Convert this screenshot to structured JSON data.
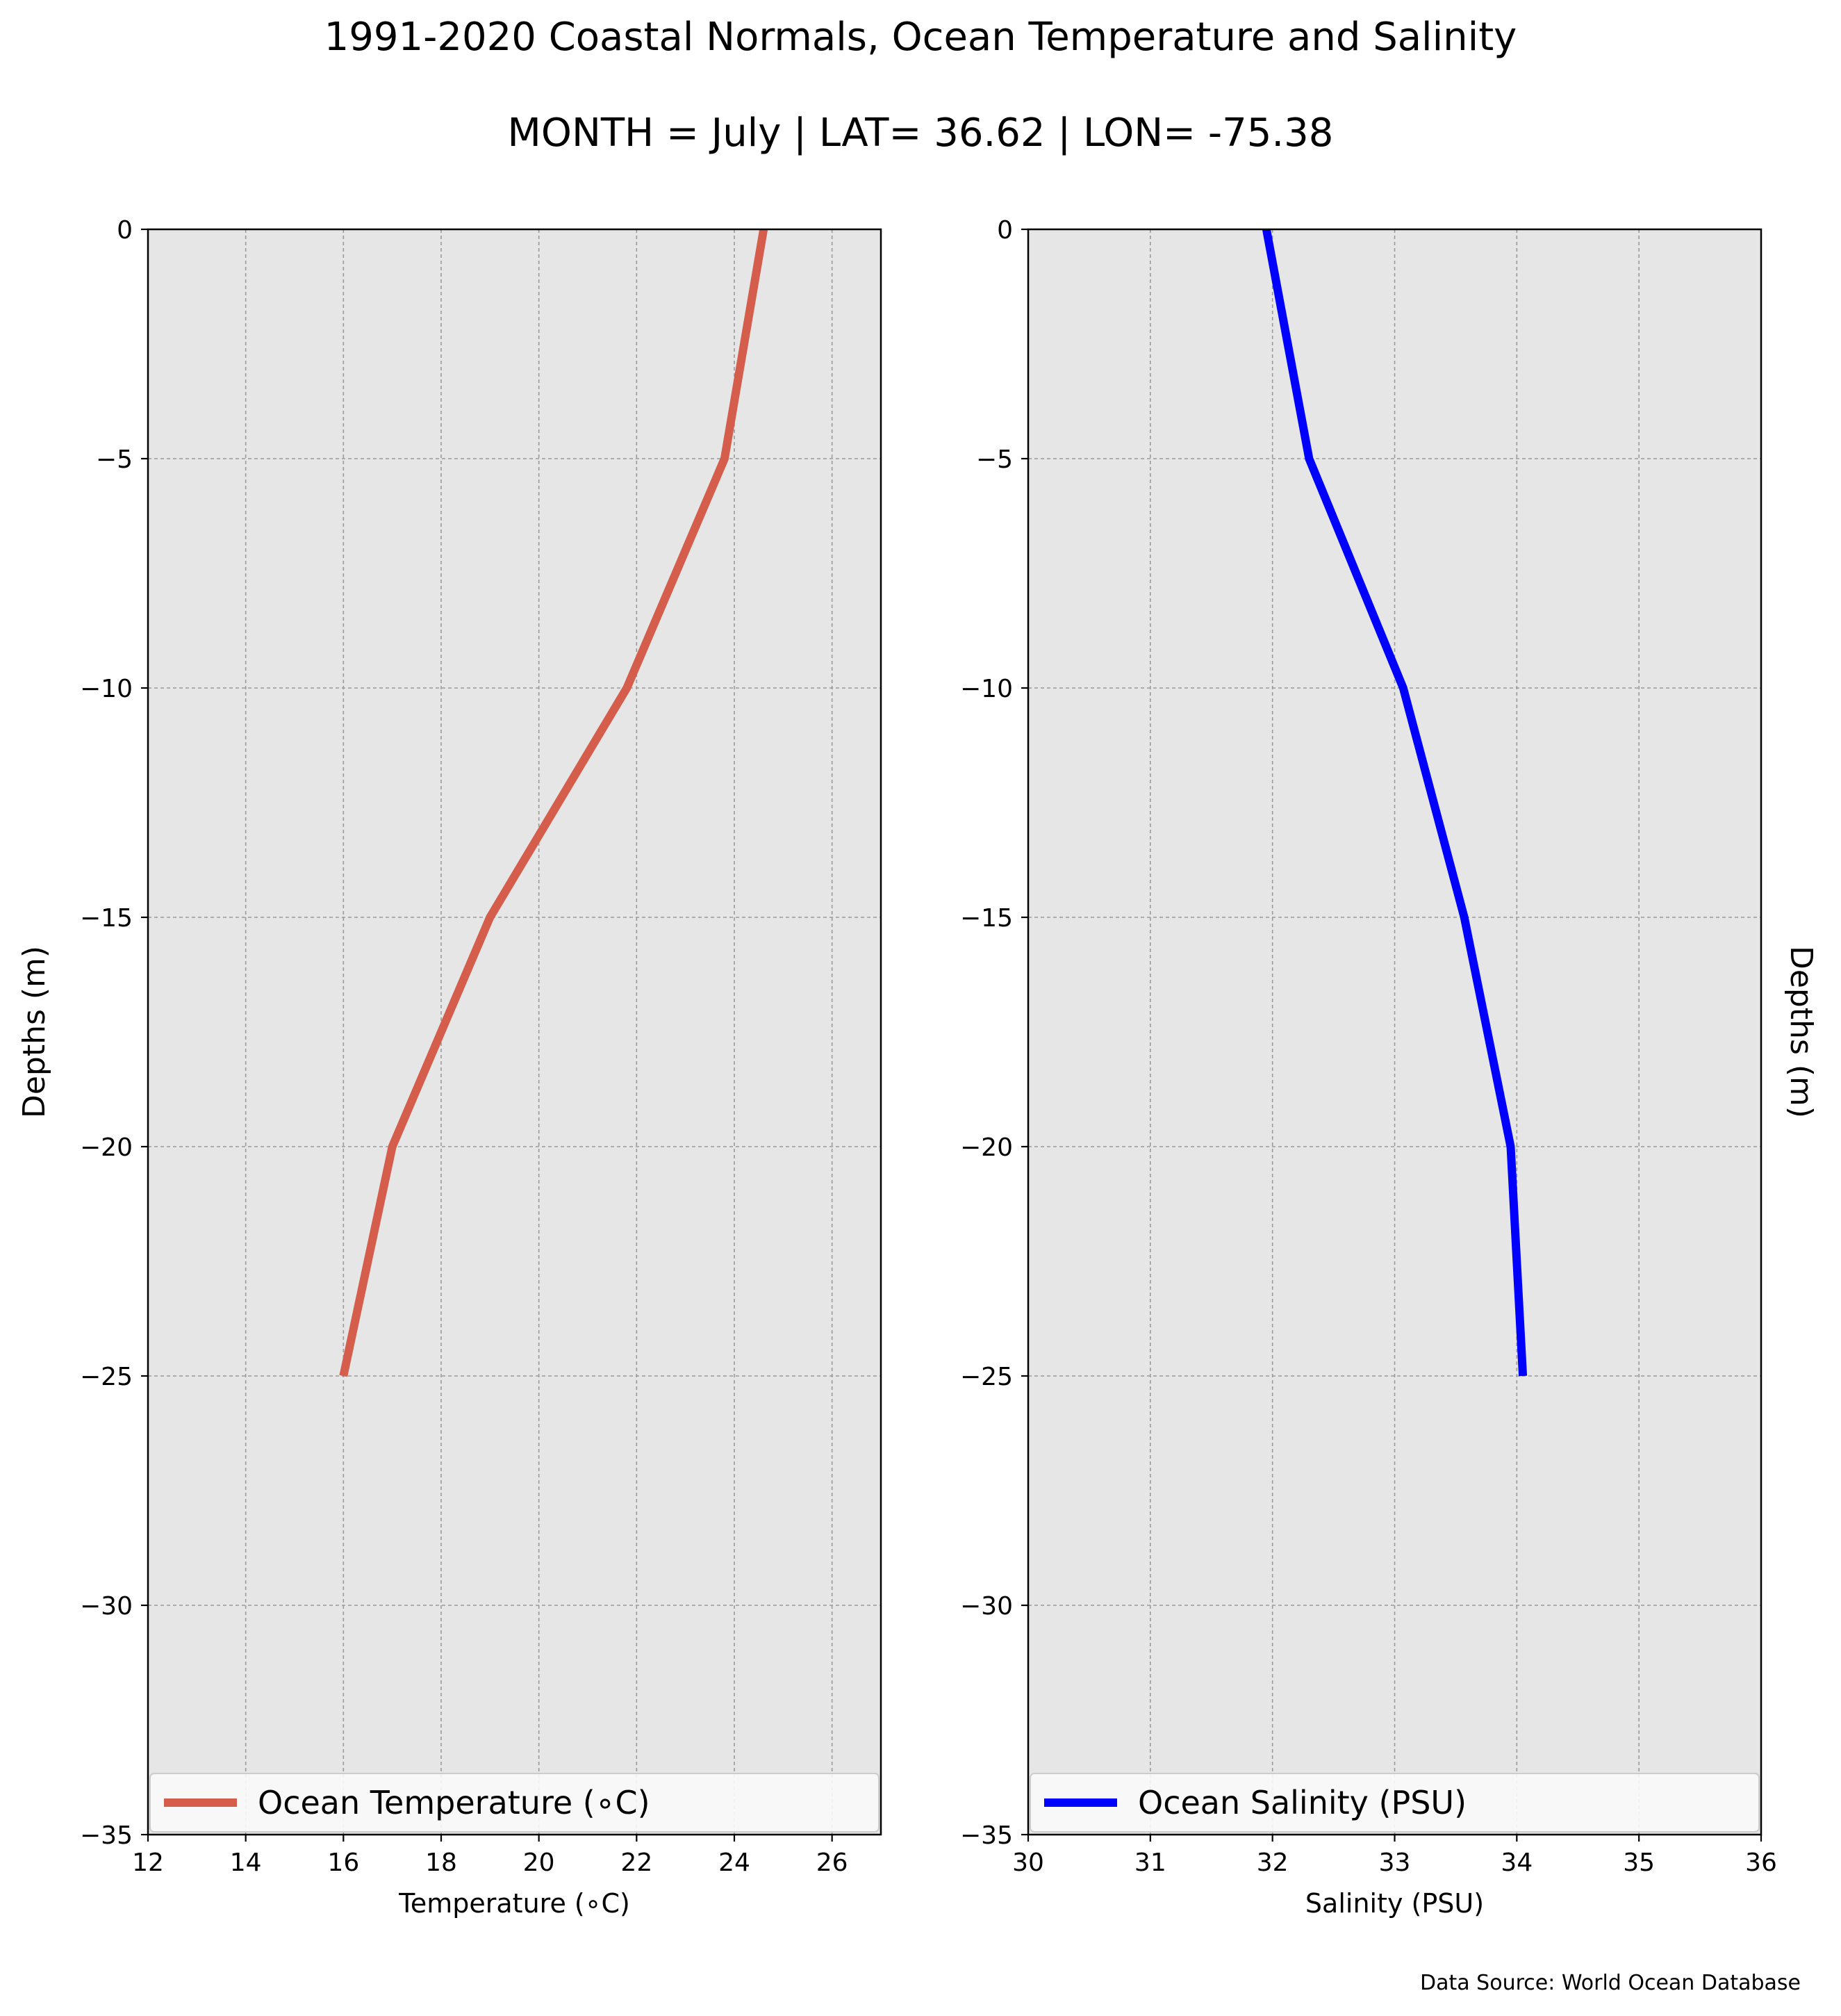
{
  "figure": {
    "title": "1991-2020 Coastal Normals, Ocean Temperature and Salinity",
    "subtitle": "MONTH = July | LAT= 36.62 | LON= -75.38",
    "source": "Data Source: World Ocean Database"
  },
  "chart_data": [
    {
      "type": "line",
      "orientation": "vertical-profile",
      "xlabel": "Temperature (∘C)",
      "ylabel": "Depths (m)",
      "xlim": [
        12,
        27
      ],
      "ylim": [
        -35,
        0
      ],
      "xticks": [
        12,
        14,
        16,
        18,
        20,
        22,
        24,
        26
      ],
      "yticks": [
        0,
        -5,
        -10,
        -15,
        -20,
        -25,
        -30,
        -35
      ],
      "ytick_labels": [
        "0",
        "−5",
        "−10",
        "−15",
        "−20",
        "−25",
        "−30",
        "−35"
      ],
      "grid": true,
      "background": "#e6e6e6",
      "legend_position": "bottom",
      "series": [
        {
          "name": "Ocean Temperature (∘C)",
          "color": "#d45d4c",
          "points": [
            {
              "x": 24.6,
              "y": 0
            },
            {
              "x": 23.8,
              "y": -5
            },
            {
              "x": 21.8,
              "y": -10
            },
            {
              "x": 19.0,
              "y": -15
            },
            {
              "x": 17.0,
              "y": -20
            },
            {
              "x": 16.0,
              "y": -25
            }
          ]
        }
      ]
    },
    {
      "type": "line",
      "orientation": "vertical-profile",
      "xlabel": "Salinity (PSU)",
      "ylabel": "Depths (m)",
      "ylabel_side": "right",
      "xlim": [
        30,
        36
      ],
      "ylim": [
        -35,
        0
      ],
      "xticks": [
        30,
        31,
        32,
        33,
        34,
        35,
        36
      ],
      "yticks": [
        0,
        -5,
        -10,
        -15,
        -20,
        -25,
        -30,
        -35
      ],
      "ytick_labels": [
        "0",
        "−5",
        "−10",
        "−15",
        "−20",
        "−25",
        "−30",
        "−35"
      ],
      "grid": true,
      "background": "#e6e6e6",
      "legend_position": "bottom",
      "series": [
        {
          "name": "Ocean Salinity (PSU)",
          "color": "#0000ff",
          "points": [
            {
              "x": 31.95,
              "y": 0
            },
            {
              "x": 32.3,
              "y": -5
            },
            {
              "x": 33.07,
              "y": -10
            },
            {
              "x": 33.57,
              "y": -15
            },
            {
              "x": 33.95,
              "y": -20
            },
            {
              "x": 34.05,
              "y": -25
            }
          ]
        }
      ]
    }
  ]
}
